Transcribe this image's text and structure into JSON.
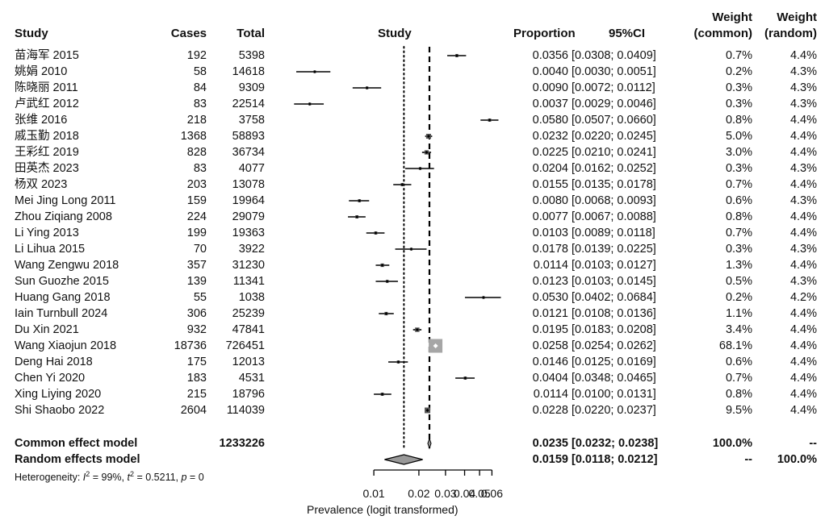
{
  "chart_data": {
    "type": "forest",
    "headers": {
      "study": "Study",
      "cases": "Cases",
      "total": "Total",
      "plot": "Study",
      "proportion": "Proportion",
      "ci": "95%CI",
      "weight_common_line1": "Weight",
      "weight_common_line2": "(common)",
      "weight_random_line1": "Weight",
      "weight_random_line2": "(random)"
    },
    "studies": [
      {
        "name": "苗海军 2015",
        "cases": "192",
        "total": "5398",
        "prop": 0.0356,
        "lo": 0.0308,
        "hi": 0.0409,
        "prop_text": "0.0356",
        "ci_text": "[0.0308; 0.0409]",
        "wc": "0.7%",
        "wr": "4.4%"
      },
      {
        "name": "姚娟 2010",
        "cases": "58",
        "total": "14618",
        "prop": 0.004,
        "lo": 0.003,
        "hi": 0.0051,
        "prop_text": "0.0040",
        "ci_text": "[0.0030; 0.0051]",
        "wc": "0.2%",
        "wr": "4.3%"
      },
      {
        "name": "陈晓丽 2011",
        "cases": "84",
        "total": "9309",
        "prop": 0.009,
        "lo": 0.0072,
        "hi": 0.0112,
        "prop_text": "0.0090",
        "ci_text": "[0.0072; 0.0112]",
        "wc": "0.3%",
        "wr": "4.3%"
      },
      {
        "name": "卢武红 2012",
        "cases": "83",
        "total": "22514",
        "prop": 0.0037,
        "lo": 0.0029,
        "hi": 0.0046,
        "prop_text": "0.0037",
        "ci_text": "[0.0029; 0.0046]",
        "wc": "0.3%",
        "wr": "4.3%"
      },
      {
        "name": "张维 2016",
        "cases": "218",
        "total": "3758",
        "prop": 0.058,
        "lo": 0.0507,
        "hi": 0.066,
        "prop_text": "0.0580",
        "ci_text": "[0.0507; 0.0660]",
        "wc": "0.8%",
        "wr": "4.4%"
      },
      {
        "name": "戚玉勤 2018",
        "cases": "1368",
        "total": "58893",
        "prop": 0.0232,
        "lo": 0.022,
        "hi": 0.0245,
        "prop_text": "0.0232",
        "ci_text": "[0.0220; 0.0245]",
        "wc": "5.0%",
        "wr": "4.4%"
      },
      {
        "name": "王彩红 2019",
        "cases": "828",
        "total": "36734",
        "prop": 0.0225,
        "lo": 0.021,
        "hi": 0.0241,
        "prop_text": "0.0225",
        "ci_text": "[0.0210; 0.0241]",
        "wc": "3.0%",
        "wr": "4.4%"
      },
      {
        "name": "田英杰 2023",
        "cases": "83",
        "total": "4077",
        "prop": 0.0204,
        "lo": 0.0162,
        "hi": 0.0252,
        "prop_text": "0.0204",
        "ci_text": "[0.0162; 0.0252]",
        "wc": "0.3%",
        "wr": "4.3%"
      },
      {
        "name": "杨双 2023",
        "cases": "203",
        "total": "13078",
        "prop": 0.0155,
        "lo": 0.0135,
        "hi": 0.0178,
        "prop_text": "0.0155",
        "ci_text": "[0.0135; 0.0178]",
        "wc": "0.7%",
        "wr": "4.4%"
      },
      {
        "name": "Mei Jing Long 2011",
        "cases": "159",
        "total": "19964",
        "prop": 0.008,
        "lo": 0.0068,
        "hi": 0.0093,
        "prop_text": "0.0080",
        "ci_text": "[0.0068; 0.0093]",
        "wc": "0.6%",
        "wr": "4.3%"
      },
      {
        "name": "Zhou Ziqiang 2008",
        "cases": "224",
        "total": "29079",
        "prop": 0.0077,
        "lo": 0.0067,
        "hi": 0.0088,
        "prop_text": "0.0077",
        "ci_text": "[0.0067; 0.0088]",
        "wc": "0.8%",
        "wr": "4.4%"
      },
      {
        "name": "Li Ying 2013",
        "cases": "199",
        "total": "19363",
        "prop": 0.0103,
        "lo": 0.0089,
        "hi": 0.0118,
        "prop_text": "0.0103",
        "ci_text": "[0.0089; 0.0118]",
        "wc": "0.7%",
        "wr": "4.4%"
      },
      {
        "name": "Li Lihua 2015",
        "cases": "70",
        "total": "3922",
        "prop": 0.0178,
        "lo": 0.0139,
        "hi": 0.0225,
        "prop_text": "0.0178",
        "ci_text": "[0.0139; 0.0225]",
        "wc": "0.3%",
        "wr": "4.3%"
      },
      {
        "name": "Wang Zengwu 2018",
        "cases": "357",
        "total": "31230",
        "prop": 0.0114,
        "lo": 0.0103,
        "hi": 0.0127,
        "prop_text": "0.0114",
        "ci_text": "[0.0103; 0.0127]",
        "wc": "1.3%",
        "wr": "4.4%"
      },
      {
        "name": "Sun Guozhe 2015",
        "cases": "139",
        "total": "11341",
        "prop": 0.0123,
        "lo": 0.0103,
        "hi": 0.0145,
        "prop_text": "0.0123",
        "ci_text": "[0.0103; 0.0145]",
        "wc": "0.5%",
        "wr": "4.3%"
      },
      {
        "name": "Huang Gang 2018",
        "cases": "55",
        "total": "1038",
        "prop": 0.053,
        "lo": 0.0402,
        "hi": 0.0684,
        "prop_text": "0.0530",
        "ci_text": "[0.0402; 0.0684]",
        "wc": "0.2%",
        "wr": "4.2%"
      },
      {
        "name": "Iain Turnbull 2024",
        "cases": "306",
        "total": "25239",
        "prop": 0.0121,
        "lo": 0.0108,
        "hi": 0.0136,
        "prop_text": "0.0121",
        "ci_text": "[0.0108; 0.0136]",
        "wc": "1.1%",
        "wr": "4.4%"
      },
      {
        "name": "Du Xin 2021",
        "cases": "932",
        "total": "47841",
        "prop": 0.0195,
        "lo": 0.0183,
        "hi": 0.0208,
        "prop_text": "0.0195",
        "ci_text": "[0.0183; 0.0208]",
        "wc": "3.4%",
        "wr": "4.4%"
      },
      {
        "name": "Wang Xiaojun 2018",
        "cases": "18736",
        "total": "726451",
        "prop": 0.0258,
        "lo": 0.0254,
        "hi": 0.0262,
        "prop_text": "0.0258",
        "ci_text": "[0.0254; 0.0262]",
        "wc": "68.1%",
        "wr": "4.4%"
      },
      {
        "name": "Deng Hai 2018",
        "cases": "175",
        "total": "12013",
        "prop": 0.0146,
        "lo": 0.0125,
        "hi": 0.0169,
        "prop_text": "0.0146",
        "ci_text": "[0.0125; 0.0169]",
        "wc": "0.6%",
        "wr": "4.4%"
      },
      {
        "name": "Chen Yi 2020",
        "cases": "183",
        "total": "4531",
        "prop": 0.0404,
        "lo": 0.0348,
        "hi": 0.0465,
        "prop_text": "0.0404",
        "ci_text": "[0.0348; 0.0465]",
        "wc": "0.7%",
        "wr": "4.4%"
      },
      {
        "name": "Xing Liying 2020",
        "cases": "215",
        "total": "18796",
        "prop": 0.0114,
        "lo": 0.01,
        "hi": 0.0131,
        "prop_text": "0.0114",
        "ci_text": "[0.0100; 0.0131]",
        "wc": "0.8%",
        "wr": "4.4%"
      },
      {
        "name": "Shi Shaobo 2022",
        "cases": "2604",
        "total": "114039",
        "prop": 0.0228,
        "lo": 0.022,
        "hi": 0.0237,
        "prop_text": "0.0228",
        "ci_text": "[0.0220; 0.0237]",
        "wc": "9.5%",
        "wr": "4.4%"
      }
    ],
    "common": {
      "label": "Common effect model",
      "total": "1233226",
      "prop": 0.0235,
      "lo": 0.0232,
      "hi": 0.0238,
      "prop_text": "0.0235",
      "ci_text": "[0.0232; 0.0238]",
      "wc": "100.0%",
      "wr": "--"
    },
    "random": {
      "label": "Random effects model",
      "prop": 0.0159,
      "lo": 0.0118,
      "hi": 0.0212,
      "prop_text": "0.0159",
      "ci_text": "[0.0118; 0.0212]",
      "wc": "--",
      "wr": "100.0%"
    },
    "heterogeneity": {
      "prefix": "Heterogeneity: ",
      "i2_symbol": "I",
      "i2_value": " = 99%, ",
      "t2_symbol": "t",
      "t2_value": " = 0.5211, ",
      "p_symbol": "p",
      "p_value": " = 0"
    },
    "axis": {
      "xlabel": "Prevalence (logit transformed)",
      "ticks": [
        0.01,
        0.02,
        0.03,
        0.04,
        0.05,
        0.06
      ],
      "tick_labels": [
        "0.01",
        "0.02",
        "0.03",
        "0.04",
        "0.05",
        "0.06"
      ],
      "scale": "logit",
      "xlim": [
        0.003,
        0.068
      ],
      "reference_lines": {
        "common_dashed": 0.0235,
        "random_dotted": 0.0159
      }
    }
  }
}
